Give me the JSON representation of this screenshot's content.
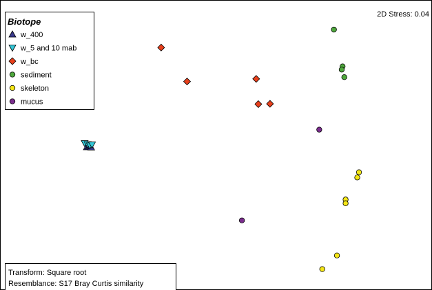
{
  "chart_data": {
    "type": "scatter",
    "title": "",
    "stress_label": "2D Stress: 0.04",
    "xlabel": "",
    "ylabel": "",
    "grid": false,
    "legend_placement": "top-left",
    "legend": {
      "title": "Biotope",
      "entries": [
        {
          "name": "w_400",
          "marker": "triangle-up",
          "color": "#3a3a8c"
        },
        {
          "name": "w_5 and 10 mab",
          "marker": "triangle-down",
          "color": "#33c6d6"
        },
        {
          "name": "w_bc",
          "marker": "diamond",
          "color": "#e8401c"
        },
        {
          "name": "sediment",
          "marker": "circle",
          "color": "#4fa83d"
        },
        {
          "name": "skeleton",
          "marker": "circle",
          "color": "#f5e616"
        },
        {
          "name": "mucus",
          "marker": "circle",
          "color": "#7b2d8e"
        }
      ]
    },
    "xlim": [
      0,
      100
    ],
    "ylim": [
      0,
      100
    ],
    "series": [
      {
        "name": "w_400",
        "marker": "triangle-up",
        "color": "#3a3a8c",
        "points": [
          [
            20.1,
            49.3
          ],
          [
            20.6,
            49.6
          ],
          [
            21.1,
            49.2
          ]
        ]
      },
      {
        "name": "w_5 and 10 mab",
        "marker": "triangle-down",
        "color": "#33c6d6",
        "points": [
          [
            19.6,
            50.6
          ],
          [
            20.3,
            50.2
          ],
          [
            20.8,
            49.8
          ],
          [
            21.3,
            50.1
          ]
        ]
      },
      {
        "name": "w_bc",
        "marker": "diamond",
        "color": "#e8401c",
        "points": [
          [
            37.3,
            83.6
          ],
          [
            43.3,
            71.9
          ],
          [
            59.3,
            72.8
          ],
          [
            59.8,
            64.1
          ],
          [
            62.5,
            64.2
          ]
        ]
      },
      {
        "name": "sediment",
        "marker": "circle",
        "color": "#4fa83d",
        "points": [
          [
            77.3,
            89.8
          ],
          [
            79.3,
            77.1
          ],
          [
            79.1,
            76.0
          ],
          [
            79.7,
            73.4
          ]
        ]
      },
      {
        "name": "skeleton",
        "marker": "circle",
        "color": "#f5e616",
        "points": [
          [
            83.1,
            40.6
          ],
          [
            82.7,
            38.8
          ],
          [
            80.0,
            31.2
          ],
          [
            80.0,
            29.9
          ],
          [
            78.0,
            11.9
          ],
          [
            74.6,
            7.2
          ]
        ]
      },
      {
        "name": "mucus",
        "marker": "circle",
        "color": "#7b2d8e",
        "points": [
          [
            73.9,
            55.3
          ],
          [
            56.0,
            24.0
          ]
        ]
      }
    ],
    "annotation": {
      "lines": [
        "Transform: Square root",
        "Resemblance: S17 Bray Curtis similarity"
      ]
    }
  }
}
